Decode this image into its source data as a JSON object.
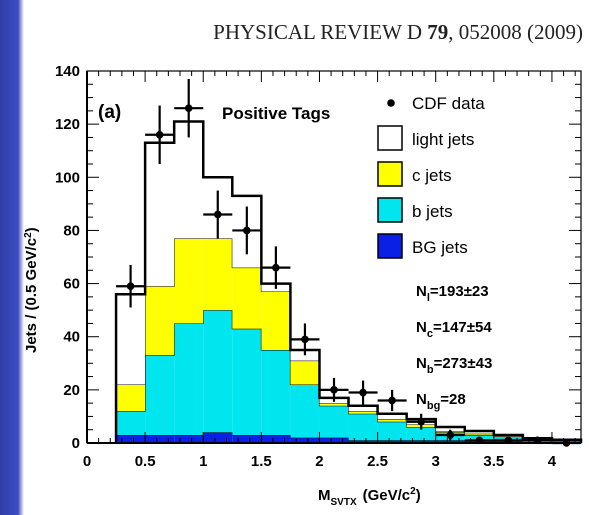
{
  "header": {
    "journal": "PHYSICAL REVIEW D",
    "volume": "79",
    "article": "052008 (2009)"
  },
  "chart_data": {
    "type": "bar",
    "panel_label": "(a)",
    "annotation": "Positive Tags",
    "xlabel": {
      "main": "M",
      "sub": "SVTX",
      "unit_open": "(GeV/c",
      "sup": "2",
      "unit_close": ")"
    },
    "ylabel": {
      "main": "Jets / (0.5 GeV/c",
      "sup": "2",
      "close": ")"
    },
    "xlim": [
      0,
      4.25
    ],
    "ylim": [
      0,
      140
    ],
    "x_ticks": [
      0,
      0.5,
      1,
      1.5,
      2,
      2.5,
      3,
      3.5,
      4
    ],
    "x_tick_labels": [
      "0",
      "0.5",
      "1",
      "1.5",
      "2",
      "2.5",
      "3",
      "3.5",
      "4"
    ],
    "y_ticks": [
      0,
      20,
      40,
      60,
      80,
      100,
      120,
      140
    ],
    "y_tick_labels": [
      "0",
      "20",
      "40",
      "60",
      "80",
      "100",
      "120",
      "140"
    ],
    "bin_edges": [
      0.25,
      0.5,
      0.75,
      1.0,
      1.25,
      1.5,
      1.75,
      2.0,
      2.25,
      2.5,
      2.75,
      3.0,
      3.25,
      3.5,
      3.75,
      4.0,
      4.25
    ],
    "stack": [
      {
        "name": "BG jets",
        "color": "#0a20e6",
        "values": [
          3,
          3,
          3,
          4,
          3,
          3,
          2,
          2,
          1,
          1,
          1,
          1,
          0.5,
          0.5,
          0.3,
          0.3
        ]
      },
      {
        "name": "b jets",
        "color": "#00e5ee",
        "cumulative": [
          12,
          33,
          45,
          50,
          43,
          35,
          22,
          14,
          11,
          8,
          6,
          4,
          3,
          2,
          1.2,
          0.8
        ]
      },
      {
        "name": "c jets",
        "color": "#ffff00",
        "cumulative": [
          22,
          59,
          77,
          77,
          66,
          57,
          31,
          15,
          12,
          9,
          7,
          4.5,
          3.5,
          2.5,
          1.5,
          1
        ]
      },
      {
        "name": "light jets",
        "color": "#ffffff",
        "cumulative": [
          56,
          113,
          121,
          100,
          93,
          60,
          35,
          17,
          14,
          11,
          9,
          6,
          4.5,
          3,
          1.8,
          1.2
        ]
      }
    ],
    "data_series": {
      "name": "CDF data",
      "x": [
        0.375,
        0.625,
        0.875,
        1.125,
        1.375,
        1.625,
        1.875,
        2.125,
        2.375,
        2.625,
        2.875,
        3.125,
        3.375,
        3.625,
        3.875,
        4.125
      ],
      "y": [
        59,
        116,
        126,
        86,
        80,
        66,
        39,
        20,
        19,
        16,
        8,
        3,
        1,
        1,
        1,
        0
      ],
      "err": [
        8,
        11,
        11,
        9,
        9,
        8,
        6,
        4.5,
        4.5,
        4,
        3,
        2,
        1,
        1,
        1,
        0
      ]
    },
    "legend": [
      {
        "label": "CDF data",
        "kind": "marker"
      },
      {
        "label": "light jets",
        "kind": "box",
        "color": "#ffffff"
      },
      {
        "label": "c jets",
        "kind": "box",
        "color": "#ffff00"
      },
      {
        "label": "b jets",
        "kind": "box",
        "color": "#00e5ee"
      },
      {
        "label": "BG jets",
        "kind": "box",
        "color": "#0a20e6"
      }
    ],
    "legend_position": "top-right",
    "fit_results": [
      {
        "name": "N",
        "sub": "l",
        "value": "=193±23"
      },
      {
        "name": "N",
        "sub": "c",
        "value": "=147±54"
      },
      {
        "name": "N",
        "sub": "b",
        "value": "=273±43"
      },
      {
        "name": "N",
        "sub": "bg",
        "value": "=28"
      }
    ]
  }
}
